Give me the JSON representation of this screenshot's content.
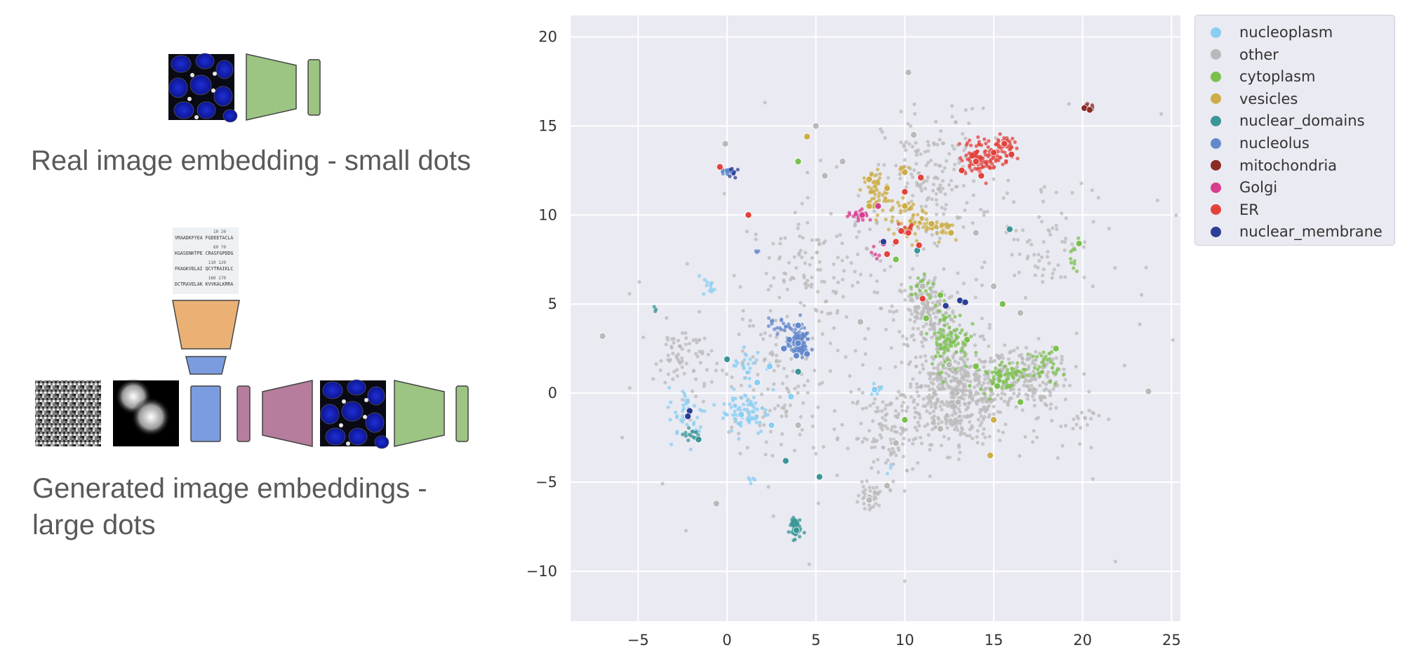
{
  "left_panel": {
    "real_caption": "Real image embedding - small dots",
    "generated_caption": "Generated image embeddings - large dots",
    "sequence_lines": [
      {
        "nums": "10          20",
        "seq": "VRAADKFYEA  FGDEETACLA"
      },
      {
        "nums": "60          70",
        "seq": "KGASENKTPE  CRASFGPDDG"
      },
      {
        "nums": "110         120",
        "seq": "FKAGKVELAI  QCYTRAIKLC"
      },
      {
        "nums": "160         170",
        "seq": "DCTRAVELAK  KVVKALKRRA"
      }
    ],
    "colors": {
      "encoder_green": "#9cc483",
      "encoder_orange": "#ebb174",
      "encoder_blue": "#7b9de0",
      "decoder_mauve": "#b67d9d",
      "nuclei_blue": "#1a2ec8"
    },
    "icons": [
      "cell-image-icon",
      "noise-image-icon",
      "blob-image-icon",
      "sequence-image-icon"
    ]
  },
  "chart_data": {
    "type": "scatter",
    "title": "",
    "xlabel": "",
    "ylabel": "",
    "xlim": [
      -8.8,
      25.5
    ],
    "ylim": [
      -12.8,
      21.2
    ],
    "xticks": [
      -5,
      0,
      5,
      10,
      15,
      20,
      25
    ],
    "yticks": [
      -10,
      -5,
      0,
      5,
      10,
      15,
      20
    ],
    "xtick_labels": [
      "−5",
      "0",
      "5",
      "10",
      "15",
      "20",
      "25"
    ],
    "ytick_labels": [
      "−10",
      "−5",
      "0",
      "5",
      "10",
      "15",
      "20"
    ],
    "grid": true,
    "background": "#eaeaf2",
    "legend_position": "outside-top-right",
    "marker_sizes": {
      "real": "small",
      "generated": "large"
    },
    "series": [
      {
        "name": "nucleoplasm",
        "color": "#88cdf2",
        "clusters": [
          [
            1.0,
            -1.0,
            1.2,
            1.2,
            70
          ],
          [
            -2.2,
            -1.2,
            1.0,
            1.4,
            40
          ],
          [
            1.2,
            1.5,
            0.9,
            1.1,
            25
          ],
          [
            -1.0,
            6.0,
            0.3,
            0.5,
            12
          ],
          [
            8.5,
            0.3,
            0.5,
            0.4,
            6
          ],
          [
            1.3,
            -4.8,
            0.3,
            0.3,
            5
          ],
          [
            9.2,
            -4.3,
            0.3,
            0.3,
            3
          ]
        ],
        "generated": [
          [
            2.4,
            1.5
          ],
          [
            3.6,
            -0.2
          ],
          [
            8.3,
            0.2
          ],
          [
            0.8,
            -1.2
          ],
          [
            1.7,
            0.6
          ],
          [
            2.5,
            -1.8
          ]
        ]
      },
      {
        "name": "other",
        "color": "#b9b9b9",
        "clusters": [
          [
            13.0,
            0.0,
            2.8,
            2.5,
            520
          ],
          [
            11.2,
            4.5,
            1.6,
            2.0,
            170
          ],
          [
            17.0,
            1.0,
            1.5,
            1.6,
            140
          ],
          [
            11.5,
            12.0,
            2.5,
            3.5,
            150
          ],
          [
            9.0,
            -2.5,
            1.8,
            2.2,
            90
          ],
          [
            5.0,
            7.0,
            3.5,
            3.0,
            110
          ],
          [
            -2.5,
            2.0,
            1.5,
            1.8,
            70
          ],
          [
            3.0,
            0.0,
            3.5,
            4.5,
            120
          ],
          [
            8.0,
            -5.8,
            0.5,
            0.6,
            30
          ],
          [
            18.0,
            9.0,
            2.5,
            3.0,
            60
          ],
          [
            9.0,
            3.5,
            14.0,
            11.0,
            160
          ],
          [
            19.0,
            -1.0,
            2.0,
            2.0,
            40
          ]
        ],
        "generated": [
          [
            5.0,
            15.0
          ],
          [
            10.2,
            18.0
          ],
          [
            6.5,
            13.0
          ],
          [
            12.5,
            1.6
          ],
          [
            13.0,
            -0.5
          ],
          [
            9.5,
            -2.8
          ],
          [
            -0.6,
            -6.2
          ],
          [
            23.7,
            0.1
          ],
          [
            -7,
            3.2
          ],
          [
            4.0,
            -1.8
          ],
          [
            7.5,
            4.0
          ],
          [
            16.5,
            4.5
          ],
          [
            5.5,
            12.2
          ],
          [
            11.0,
            6.0
          ],
          [
            14.0,
            9.0
          ],
          [
            12.0,
            -2.0
          ],
          [
            15.0,
            6.0
          ],
          [
            8.0,
            -6.0
          ],
          [
            9.0,
            -5.2
          ],
          [
            10.5,
            14.5
          ],
          [
            -0.1,
            14.0
          ]
        ]
      },
      {
        "name": "cytoplasm",
        "color": "#7bc04c",
        "clusters": [
          [
            12.5,
            3.0,
            1.0,
            1.6,
            90
          ],
          [
            15.5,
            1.0,
            1.2,
            0.8,
            70
          ],
          [
            18.0,
            1.5,
            0.8,
            0.8,
            30
          ],
          [
            19.5,
            7.5,
            0.3,
            0.8,
            10
          ],
          [
            11.0,
            6.0,
            0.6,
            0.8,
            20
          ]
        ],
        "generated": [
          [
            12.0,
            5.5
          ],
          [
            13.5,
            3.0
          ],
          [
            11.2,
            4.2
          ],
          [
            15.5,
            5.0
          ],
          [
            18.5,
            2.5
          ],
          [
            19.8,
            8.4
          ],
          [
            15.2,
            0.4
          ],
          [
            16.5,
            -0.5
          ],
          [
            9.5,
            7.5
          ],
          [
            4.0,
            13.0
          ],
          [
            10.0,
            -1.5
          ],
          [
            14.0,
            1.5
          ]
        ]
      },
      {
        "name": "vesicles",
        "color": "#cbae47",
        "clusters": [
          [
            8.3,
            11.2,
            0.6,
            1.2,
            60
          ],
          [
            10.3,
            9.7,
            1.2,
            1.0,
            60
          ],
          [
            12.0,
            9.3,
            0.7,
            0.5,
            25
          ],
          [
            9.8,
            12.5,
            0.3,
            0.4,
            8
          ]
        ],
        "generated": [
          [
            9.0,
            11.5
          ],
          [
            10.0,
            10.5
          ],
          [
            11.5,
            9.5
          ],
          [
            12.6,
            9.0
          ],
          [
            8.0,
            12.0
          ],
          [
            10.0,
            12.4
          ],
          [
            4.5,
            14.4
          ],
          [
            15.0,
            -1.5
          ],
          [
            14.8,
            -3.5
          ],
          [
            8.0,
            10.5
          ]
        ]
      },
      {
        "name": "nuclear_domains",
        "color": "#3a9696",
        "clusters": [
          [
            3.8,
            -7.5,
            0.3,
            0.6,
            45
          ],
          [
            -2.0,
            -2.3,
            0.4,
            0.3,
            15
          ],
          [
            -4.0,
            4.7,
            0.1,
            0.2,
            3
          ]
        ],
        "generated": [
          [
            3.9,
            -7.7
          ],
          [
            -1.6,
            -2.6
          ],
          [
            3.3,
            -3.8
          ],
          [
            5.2,
            -4.7
          ],
          [
            0.0,
            1.9
          ],
          [
            4.0,
            1.2
          ],
          [
            10.7,
            8.0
          ],
          [
            15.9,
            9.2
          ]
        ]
      },
      {
        "name": "nucleolus",
        "color": "#6288cc",
        "clusters": [
          [
            4.0,
            2.8,
            0.6,
            0.8,
            90
          ],
          [
            3.0,
            3.8,
            0.6,
            0.4,
            20
          ],
          [
            0.0,
            12.5,
            0.3,
            0.3,
            15
          ],
          [
            1.7,
            8.0,
            0.1,
            0.2,
            3
          ]
        ],
        "generated": [
          [
            4.0,
            2.8
          ],
          [
            4.5,
            2.2
          ],
          [
            3.5,
            3.0
          ],
          [
            4.0,
            3.8
          ],
          [
            3.9,
            2.1
          ],
          [
            3.2,
            2.5
          ]
        ]
      },
      {
        "name": "mitochondria",
        "color": "#8c2b25",
        "clusters": [
          [
            20.3,
            16.0,
            0.3,
            0.2,
            15
          ]
        ],
        "generated": [
          [
            20.1,
            16.0
          ],
          [
            20.4,
            15.9
          ]
        ]
      },
      {
        "name": "Golgi",
        "color": "#d63e8f",
        "clusters": [
          [
            7.5,
            10.0,
            0.6,
            0.3,
            20
          ],
          [
            8.5,
            8.0,
            0.4,
            0.4,
            6
          ]
        ],
        "generated": [
          [
            7.6,
            10.0
          ],
          [
            8.5,
            10.5
          ],
          [
            8.8,
            8.4
          ]
        ]
      },
      {
        "name": "ER",
        "color": "#e3423b",
        "clusters": [
          [
            14.5,
            13.3,
            1.3,
            0.9,
            110
          ],
          [
            15.5,
            14.0,
            0.6,
            0.4,
            30
          ],
          [
            10.3,
            9.3,
            0.4,
            0.4,
            10
          ]
        ],
        "generated": [
          [
            14.0,
            13.0
          ],
          [
            15.0,
            13.5
          ],
          [
            13.2,
            12.5
          ],
          [
            15.6,
            14.0
          ],
          [
            14.3,
            12.2
          ],
          [
            16.0,
            13.4
          ],
          [
            -0.4,
            12.7
          ],
          [
            1.2,
            10.0
          ],
          [
            10.0,
            11.3
          ],
          [
            10.2,
            9.0
          ],
          [
            9.5,
            8.5
          ],
          [
            9.0,
            7.8
          ],
          [
            10.8,
            8.3
          ],
          [
            11.0,
            5.3
          ],
          [
            10.9,
            12.1
          ],
          [
            9.8,
            9.1
          ]
        ]
      },
      {
        "name": "nuclear_membrane",
        "color": "#2c3d96",
        "clusters": [
          [
            0.2,
            12.4,
            0.3,
            0.3,
            8
          ]
        ],
        "generated": [
          [
            13.1,
            5.2
          ],
          [
            13.4,
            5.1
          ],
          [
            12.3,
            4.9
          ],
          [
            8.8,
            8.5
          ],
          [
            -2.1,
            -1.0
          ],
          [
            -2.2,
            -1.3
          ]
        ]
      }
    ]
  }
}
